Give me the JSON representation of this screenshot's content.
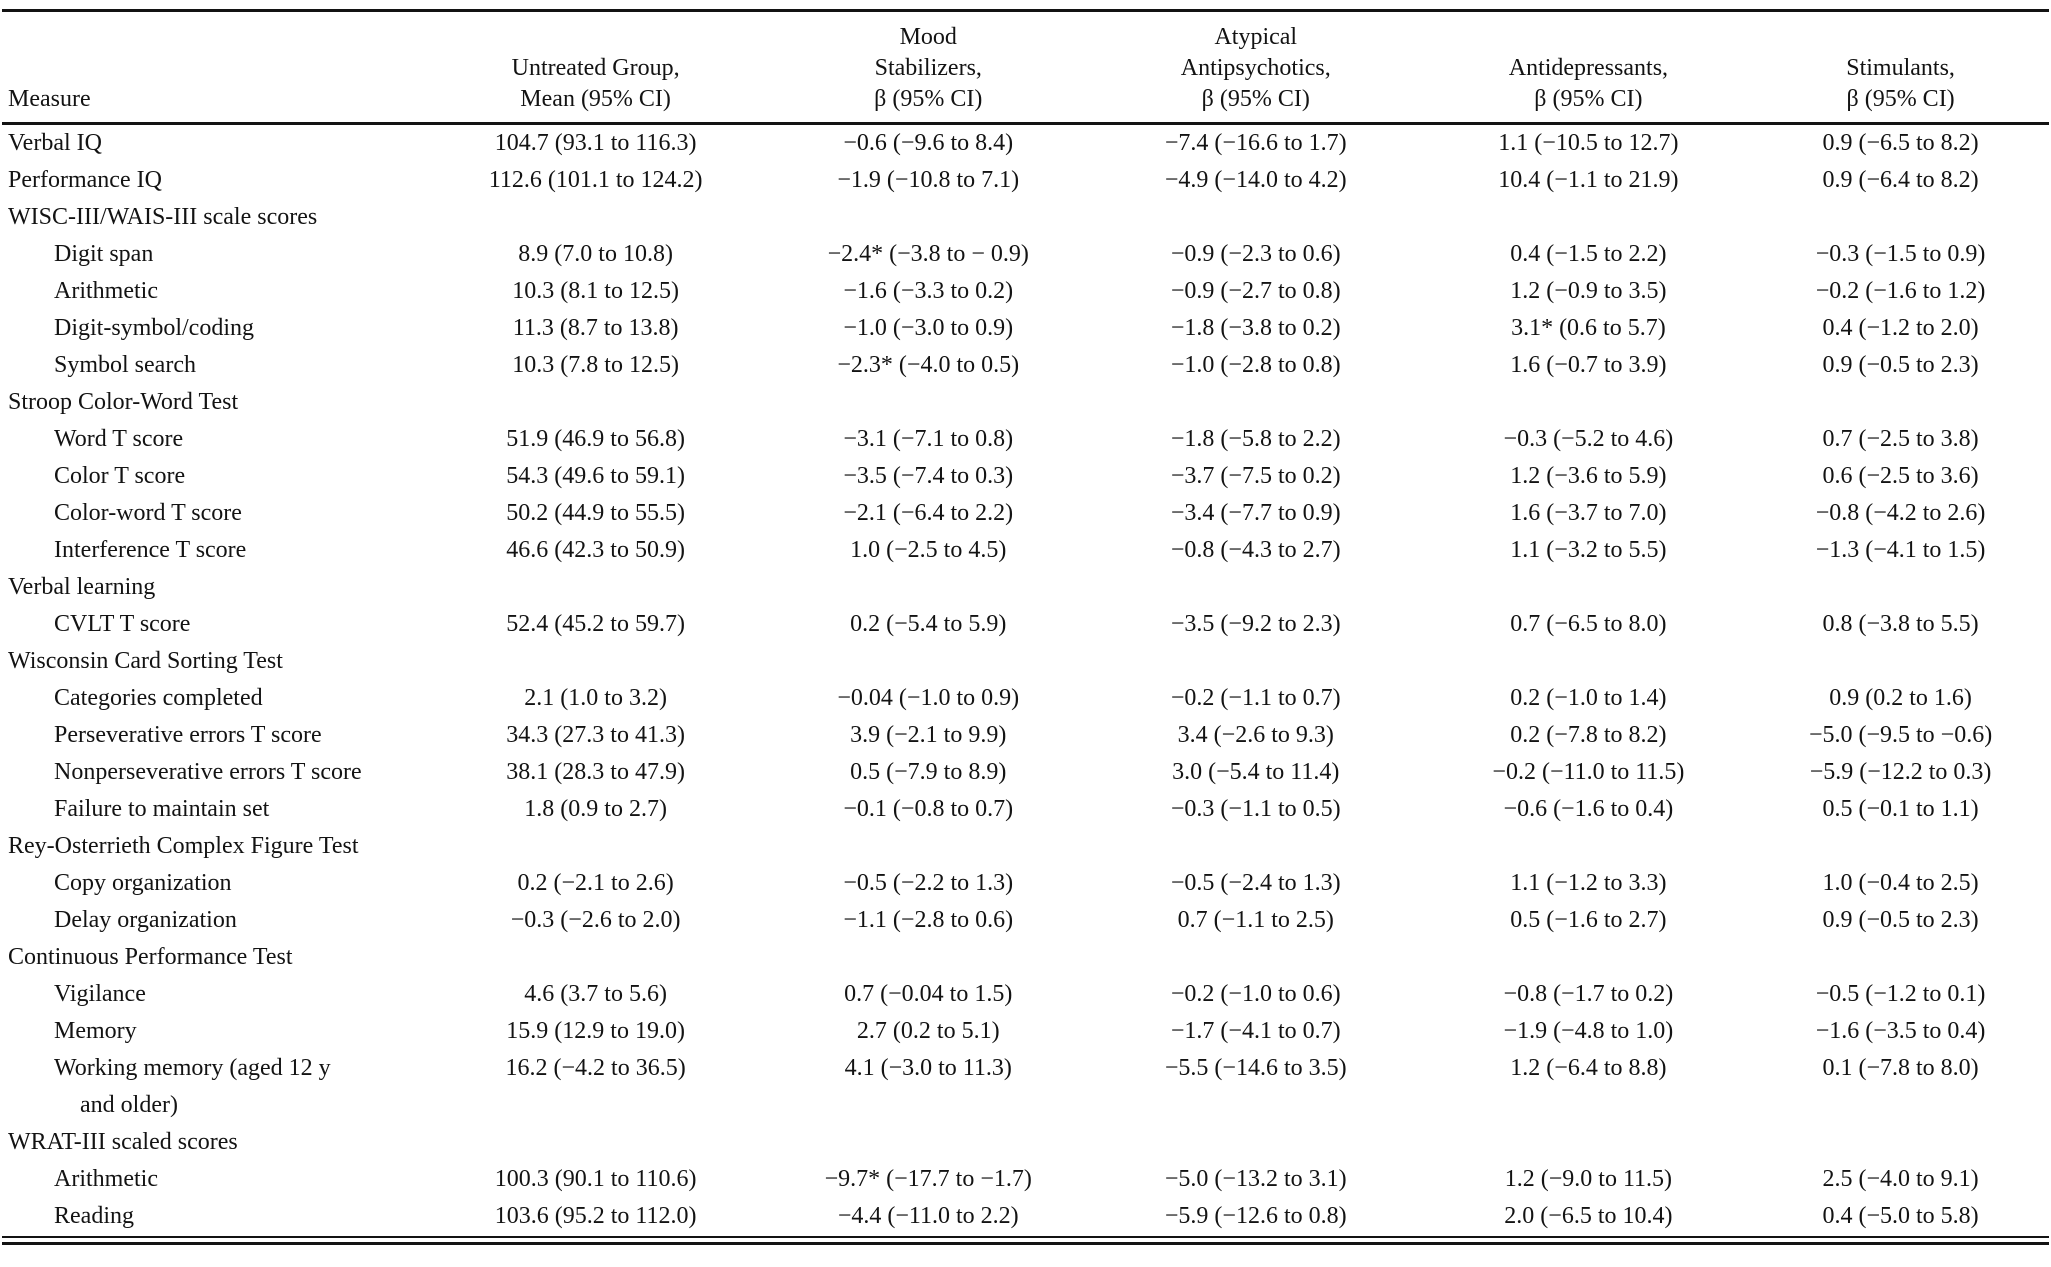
{
  "table": {
    "columns": [
      {
        "label_lines": [
          "Measure"
        ],
        "align": "left"
      },
      {
        "label_lines": [
          "Untreated Group,",
          "Mean (95% CI)"
        ],
        "align": "center"
      },
      {
        "label_lines": [
          "Mood",
          "Stabilizers,",
          "β (95% CI)"
        ],
        "align": "center"
      },
      {
        "label_lines": [
          "Atypical",
          "Antipsychotics,",
          "β (95% CI)"
        ],
        "align": "center"
      },
      {
        "label_lines": [
          "Antidepressants,",
          "β (95% CI)"
        ],
        "align": "center"
      },
      {
        "label_lines": [
          "Stimulants,",
          "β (95% CI)"
        ],
        "align": "center"
      }
    ],
    "rows": [
      {
        "type": "data",
        "indent": false,
        "measure_lines": [
          "Verbal IQ"
        ],
        "values": [
          "104.7 (93.1 to 116.3)",
          "−0.6 (−9.6 to 8.4)",
          "−7.4 (−16.6 to 1.7)",
          "1.1 (−10.5 to 12.7)",
          "0.9 (−6.5 to 8.2)"
        ]
      },
      {
        "type": "data",
        "indent": false,
        "measure_lines": [
          "Performance IQ"
        ],
        "values": [
          "112.6 (101.1 to 124.2)",
          "−1.9 (−10.8 to 7.1)",
          "−4.9 (−14.0 to 4.2)",
          "10.4 (−1.1 to 21.9)",
          "0.9 (−6.4 to 8.2)"
        ]
      },
      {
        "type": "section",
        "indent": false,
        "measure_lines": [
          "WISC-III/WAIS-III scale scores"
        ],
        "values": [
          "",
          "",
          "",
          "",
          ""
        ]
      },
      {
        "type": "data",
        "indent": true,
        "measure_lines": [
          "Digit span"
        ],
        "values": [
          "8.9 (7.0 to 10.8)",
          "−2.4* (−3.8 to − 0.9)",
          "−0.9 (−2.3 to 0.6)",
          "0.4 (−1.5 to 2.2)",
          "−0.3 (−1.5 to 0.9)"
        ]
      },
      {
        "type": "data",
        "indent": true,
        "measure_lines": [
          "Arithmetic"
        ],
        "values": [
          "10.3 (8.1 to 12.5)",
          "−1.6 (−3.3 to 0.2)",
          "−0.9 (−2.7 to 0.8)",
          "1.2 (−0.9 to 3.5)",
          "−0.2 (−1.6 to 1.2)"
        ]
      },
      {
        "type": "data",
        "indent": true,
        "measure_lines": [
          "Digit-symbol/coding"
        ],
        "values": [
          "11.3 (8.7 to 13.8)",
          "−1.0 (−3.0 to 0.9)",
          "−1.8 (−3.8 to 0.2)",
          "3.1* (0.6 to 5.7)",
          "0.4 (−1.2 to 2.0)"
        ]
      },
      {
        "type": "data",
        "indent": true,
        "measure_lines": [
          "Symbol search"
        ],
        "values": [
          "10.3 (7.8 to 12.5)",
          "−2.3* (−4.0 to 0.5)",
          "−1.0 (−2.8 to 0.8)",
          "1.6 (−0.7 to 3.9)",
          "0.9 (−0.5 to 2.3)"
        ]
      },
      {
        "type": "section",
        "indent": false,
        "measure_lines": [
          "Stroop Color-Word Test"
        ],
        "values": [
          "",
          "",
          "",
          "",
          ""
        ]
      },
      {
        "type": "data",
        "indent": true,
        "measure_lines": [
          "Word T score"
        ],
        "values": [
          "51.9 (46.9 to 56.8)",
          "−3.1 (−7.1 to 0.8)",
          "−1.8 (−5.8 to 2.2)",
          "−0.3 (−5.2 to 4.6)",
          "0.7 (−2.5 to 3.8)"
        ]
      },
      {
        "type": "data",
        "indent": true,
        "measure_lines": [
          "Color T score"
        ],
        "values": [
          "54.3 (49.6 to 59.1)",
          "−3.5 (−7.4 to 0.3)",
          "−3.7 (−7.5 to 0.2)",
          "1.2 (−3.6 to 5.9)",
          "0.6 (−2.5 to 3.6)"
        ]
      },
      {
        "type": "data",
        "indent": true,
        "measure_lines": [
          "Color-word T score"
        ],
        "values": [
          "50.2 (44.9 to 55.5)",
          "−2.1 (−6.4 to 2.2)",
          "−3.4 (−7.7 to 0.9)",
          "1.6 (−3.7 to 7.0)",
          "−0.8 (−4.2 to 2.6)"
        ]
      },
      {
        "type": "data",
        "indent": true,
        "measure_lines": [
          "Interference T score"
        ],
        "values": [
          "46.6 (42.3 to 50.9)",
          "1.0 (−2.5 to 4.5)",
          "−0.8 (−4.3 to 2.7)",
          "1.1 (−3.2 to 5.5)",
          "−1.3 (−4.1 to 1.5)"
        ]
      },
      {
        "type": "section",
        "indent": false,
        "measure_lines": [
          "Verbal learning"
        ],
        "values": [
          "",
          "",
          "",
          "",
          ""
        ]
      },
      {
        "type": "data",
        "indent": true,
        "measure_lines": [
          "CVLT T score"
        ],
        "values": [
          "52.4 (45.2 to 59.7)",
          "0.2 (−5.4 to 5.9)",
          "−3.5 (−9.2 to 2.3)",
          "0.7 (−6.5 to 8.0)",
          "0.8 (−3.8 to 5.5)"
        ]
      },
      {
        "type": "section",
        "indent": false,
        "measure_lines": [
          "Wisconsin Card Sorting Test"
        ],
        "values": [
          "",
          "",
          "",
          "",
          ""
        ]
      },
      {
        "type": "data",
        "indent": true,
        "measure_lines": [
          "Categories completed"
        ],
        "values": [
          "2.1 (1.0 to 3.2)",
          "−0.04 (−1.0 to 0.9)",
          "−0.2 (−1.1 to 0.7)",
          "0.2 (−1.0 to 1.4)",
          "0.9 (0.2 to 1.6)"
        ]
      },
      {
        "type": "data",
        "indent": true,
        "measure_lines": [
          "Perseverative errors T score"
        ],
        "values": [
          "34.3 (27.3 to 41.3)",
          "3.9 (−2.1 to 9.9)",
          "3.4 (−2.6 to 9.3)",
          "0.2 (−7.8 to 8.2)",
          "−5.0 (−9.5 to −0.6)"
        ]
      },
      {
        "type": "data",
        "indent": true,
        "measure_lines": [
          "Nonperseverative errors T score"
        ],
        "values": [
          "38.1 (28.3 to 47.9)",
          "0.5 (−7.9 to 8.9)",
          "3.0 (−5.4 to 11.4)",
          "−0.2 (−11.0 to 11.5)",
          "−5.9 (−12.2 to 0.3)"
        ]
      },
      {
        "type": "data",
        "indent": true,
        "measure_lines": [
          "Failure to maintain set"
        ],
        "values": [
          "1.8 (0.9 to 2.7)",
          "−0.1 (−0.8 to 0.7)",
          "−0.3 (−1.1 to 0.5)",
          "−0.6 (−1.6 to 0.4)",
          "0.5 (−0.1 to 1.1)"
        ]
      },
      {
        "type": "section",
        "indent": false,
        "measure_lines": [
          "Rey-Osterrieth Complex Figure Test"
        ],
        "values": [
          "",
          "",
          "",
          "",
          ""
        ]
      },
      {
        "type": "data",
        "indent": true,
        "measure_lines": [
          "Copy organization"
        ],
        "values": [
          "0.2 (−2.1 to 2.6)",
          "−0.5 (−2.2 to 1.3)",
          "−0.5 (−2.4 to 1.3)",
          "1.1 (−1.2 to 3.3)",
          "1.0 (−0.4 to 2.5)"
        ]
      },
      {
        "type": "data",
        "indent": true,
        "measure_lines": [
          "Delay organization"
        ],
        "values": [
          "−0.3 (−2.6 to 2.0)",
          "−1.1 (−2.8 to 0.6)",
          "0.7 (−1.1 to 2.5)",
          "0.5 (−1.6 to 2.7)",
          "0.9 (−0.5 to 2.3)"
        ]
      },
      {
        "type": "section",
        "indent": false,
        "measure_lines": [
          "Continuous Performance Test"
        ],
        "values": [
          "",
          "",
          "",
          "",
          ""
        ]
      },
      {
        "type": "data",
        "indent": true,
        "measure_lines": [
          "Vigilance"
        ],
        "values": [
          "4.6 (3.7 to 5.6)",
          "0.7 (−0.04 to 1.5)",
          "−0.2 (−1.0 to 0.6)",
          "−0.8 (−1.7 to 0.2)",
          "−0.5 (−1.2 to 0.1)"
        ]
      },
      {
        "type": "data",
        "indent": true,
        "measure_lines": [
          "Memory"
        ],
        "values": [
          "15.9 (12.9 to 19.0)",
          "2.7 (0.2 to 5.1)",
          "−1.7 (−4.1 to 0.7)",
          "−1.9 (−4.8 to 1.0)",
          "−1.6 (−3.5 to 0.4)"
        ]
      },
      {
        "type": "data",
        "indent": true,
        "measure_lines": [
          "Working memory (aged 12 y",
          "and older)"
        ],
        "values": [
          "16.2 (−4.2 to 36.5)",
          "4.1 (−3.0 to 11.3)",
          "−5.5 (−14.6 to 3.5)",
          "1.2 (−6.4 to 8.8)",
          "0.1 (−7.8 to 8.0)"
        ]
      },
      {
        "type": "section",
        "indent": false,
        "measure_lines": [
          "WRAT-III scaled scores"
        ],
        "values": [
          "",
          "",
          "",
          "",
          ""
        ]
      },
      {
        "type": "data",
        "indent": true,
        "measure_lines": [
          "Arithmetic"
        ],
        "values": [
          "100.3 (90.1 to 110.6)",
          "−9.7* (−17.7 to −1.7)",
          "−5.0 (−13.2 to 3.1)",
          "1.2 (−9.0 to 11.5)",
          "2.5 (−4.0 to 9.1)"
        ]
      },
      {
        "type": "data",
        "indent": true,
        "measure_lines": [
          "Reading"
        ],
        "values": [
          "103.6 (95.2 to 112.0)",
          "−4.4 (−11.0 to 2.2)",
          "−5.9 (−12.6 to 0.8)",
          "2.0 (−6.5 to 10.4)",
          "0.4 (−5.0 to 5.8)"
        ]
      }
    ]
  }
}
